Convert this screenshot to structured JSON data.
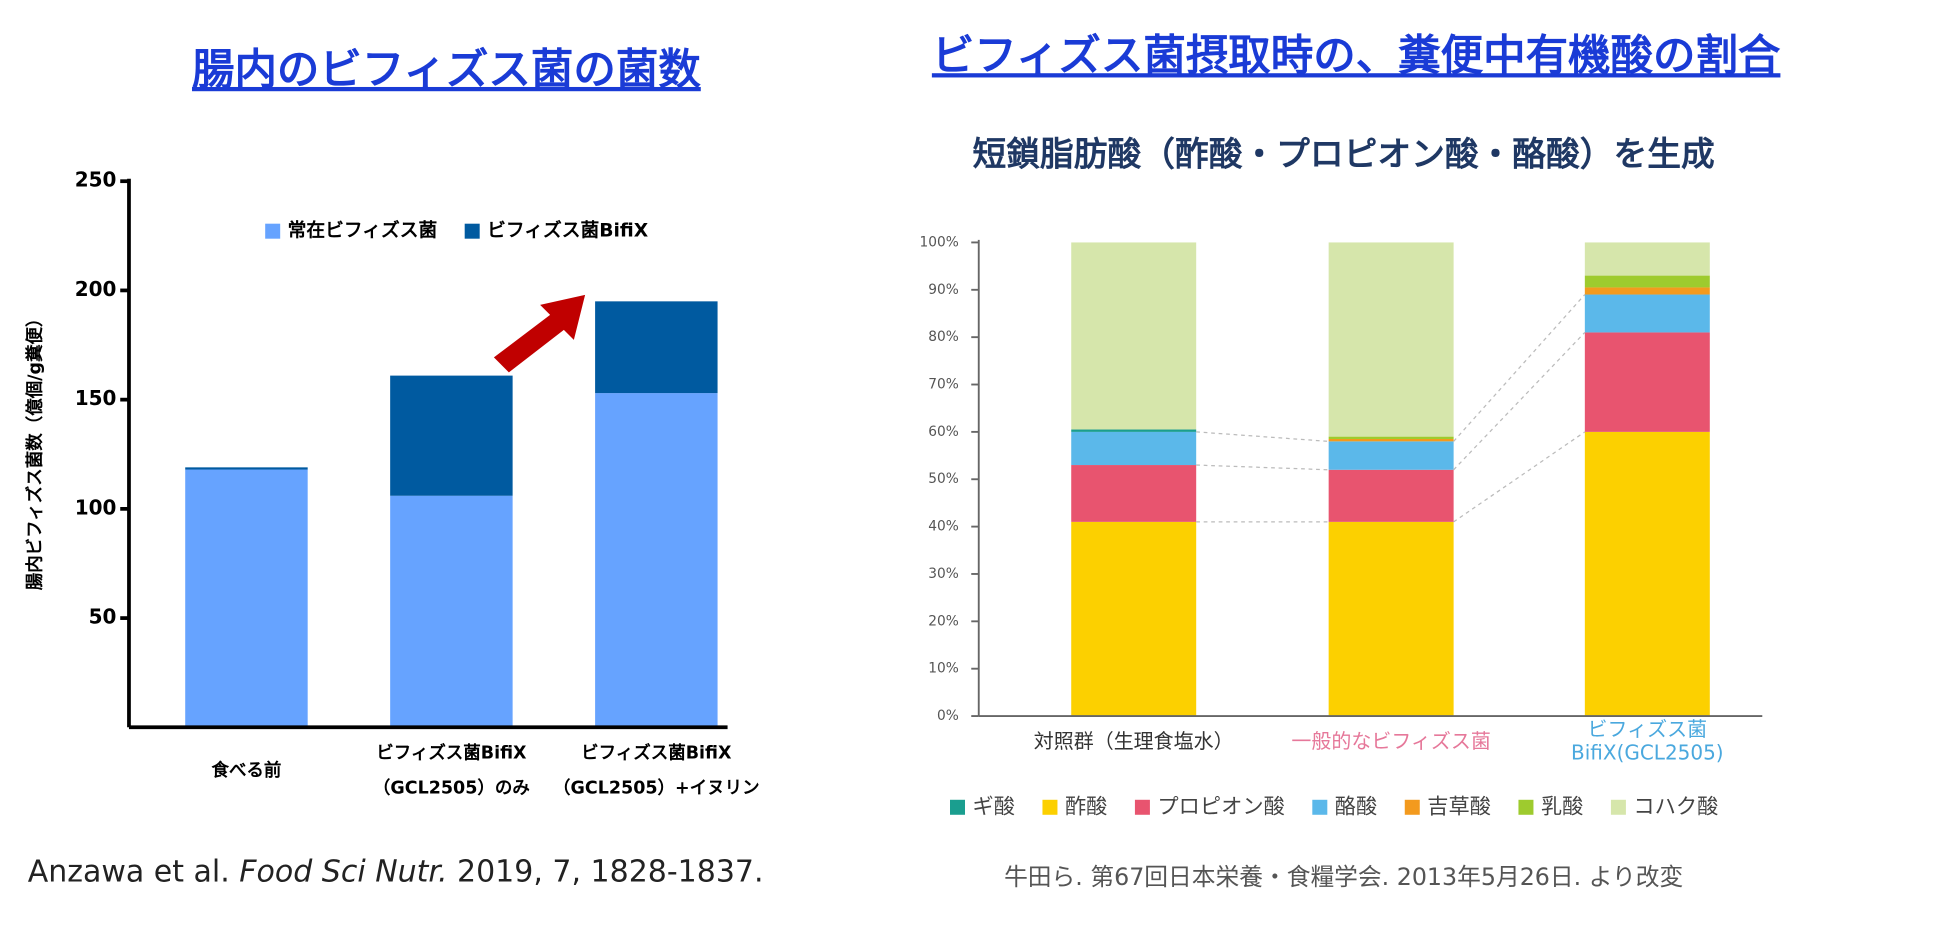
{
  "chart_data": [
    {
      "type": "stacked_bar",
      "title": "腸内のビフィズス菌の菌数",
      "ylabel": "腸内ビフィズス菌数（億個/g糞便）",
      "categories": [
        [
          "食べる前"
        ],
        [
          "ビフィズス菌BifiX",
          "（GCL2505）のみ"
        ],
        [
          "ビフィズス菌BifiX",
          "（GCL2505）+イヌリン"
        ]
      ],
      "series": [
        {
          "name": "常在ビフィズス菌",
          "color": "#66a3ff",
          "values": [
            118,
            106,
            153
          ]
        },
        {
          "name": "ビフィズス菌BifiX",
          "color": "#005aa0",
          "values": [
            1,
            55,
            42
          ]
        }
      ],
      "ylim": [
        0,
        250
      ],
      "yticks": [
        50,
        100,
        150,
        200,
        250
      ],
      "source": [
        "Anzawa et al. ",
        "Food Sci Nutr.",
        " 2019, 7, 1828-1837."
      ]
    },
    {
      "type": "stacked_bar_100",
      "title": "ビフィズス菌摂取時の、糞便中有機酸の割合",
      "subtitle": "短鎖脂肪酸（酢酸・プロピオン酸・酪酸）を生成",
      "categories": [
        [
          "対照群（生理食塩水）"
        ],
        [
          "一般的なビフィズス菌"
        ],
        [
          "ビフィズス菌",
          "BifiX(GCL2505)"
        ]
      ],
      "category_colors": [
        "#333333",
        "#e6789a",
        "#4aa8de"
      ],
      "series": [
        {
          "name": "ギ酸",
          "color": "#1a9e8f",
          "values": [
            0.5,
            0,
            0
          ]
        },
        {
          "name": "酢酸",
          "color": "#fcd000",
          "values": [
            41,
            41,
            60
          ]
        },
        {
          "name": "プロピオン酸",
          "color": "#e8546f",
          "values": [
            12,
            11,
            21
          ]
        },
        {
          "name": "酪酸",
          "color": "#5bb8ea",
          "values": [
            7,
            6,
            8
          ]
        },
        {
          "name": "吉草酸",
          "color": "#f39a1e",
          "values": [
            0,
            0.5,
            1.5
          ]
        },
        {
          "name": "乳酸",
          "color": "#9ecb2e",
          "values": [
            0,
            0.5,
            2.5
          ]
        },
        {
          "name": "コハク酸",
          "color": "#d6e6ab",
          "values": [
            39.5,
            41,
            7
          ]
        }
      ],
      "ylim": [
        0,
        100
      ],
      "yticks": [
        {
          "value": 0,
          "label": "0%"
        },
        {
          "value": 10,
          "label": "10%"
        },
        {
          "value": 20,
          "label": "20%"
        },
        {
          "value": 30,
          "label": "30%"
        },
        {
          "value": 40,
          "label": "40%"
        },
        {
          "value": 50,
          "label": "50%"
        },
        {
          "value": 60,
          "label": "60%"
        },
        {
          "value": 70,
          "label": "70%"
        },
        {
          "value": 80,
          "label": "80%"
        },
        {
          "value": 90,
          "label": "90%"
        },
        {
          "value": 100,
          "label": "100%"
        }
      ],
      "source": "牛田ら. 第67回日本栄養・食糧学会. 2013年5月26日. より改変"
    }
  ]
}
